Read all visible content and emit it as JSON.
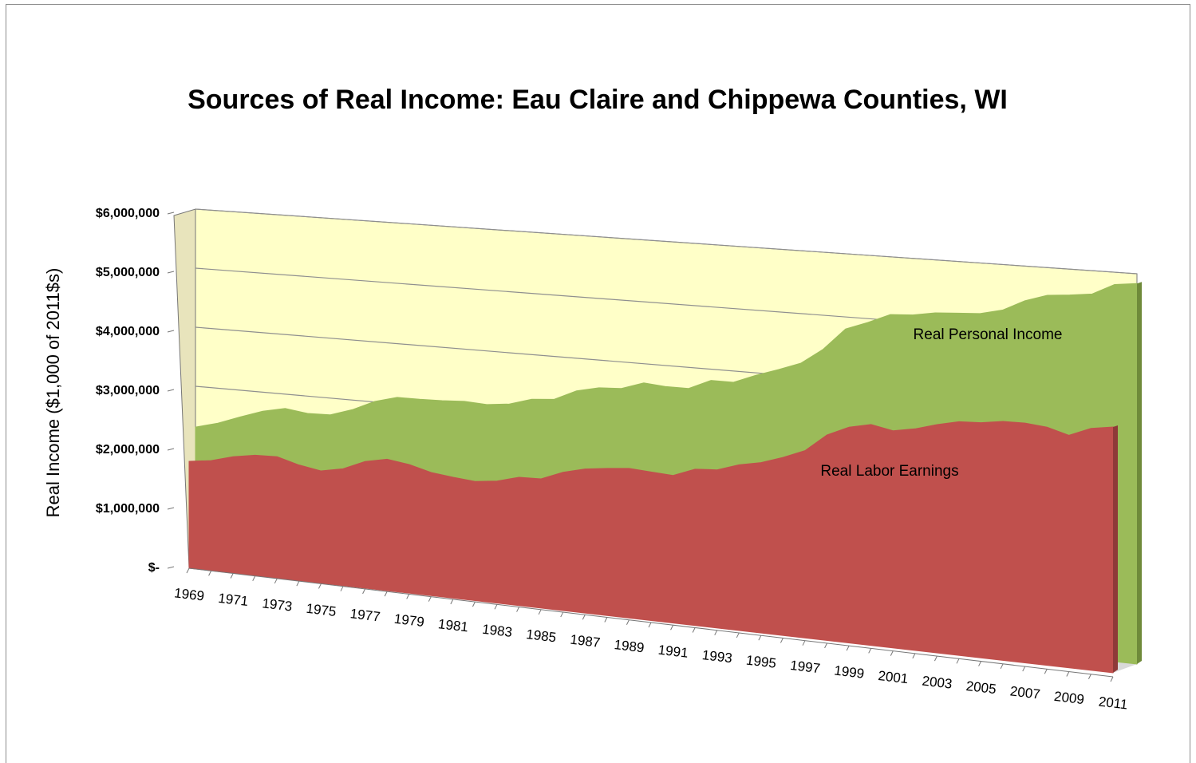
{
  "chart_data": {
    "type": "area3d",
    "title": "Sources of Real Income: Eau Claire and Chippewa Counties, WI",
    "y_label": "Real Income ($1,000 of 2011$s)",
    "categories": [
      "1969",
      null,
      "1971",
      null,
      "1973",
      null,
      "1975",
      null,
      "1977",
      null,
      "1979",
      null,
      "1981",
      null,
      "1983",
      null,
      "1985",
      null,
      "1987",
      null,
      "1989",
      null,
      "1991",
      null,
      "1993",
      null,
      "1995",
      null,
      "1997",
      null,
      "1999",
      null,
      "2001",
      null,
      "2003",
      null,
      "2005",
      null,
      "2007",
      null,
      "2009",
      null,
      "2011"
    ],
    "series": [
      {
        "name": "Real Personal Income",
        "color": "#9bbb59",
        "values": [
          2310000,
          2410000,
          2550000,
          2680000,
          2760000,
          2710000,
          2720000,
          2840000,
          3010000,
          3110000,
          3110000,
          3120000,
          3140000,
          3120000,
          3160000,
          3270000,
          3300000,
          3470000,
          3550000,
          3570000,
          3690000,
          3660000,
          3660000,
          3820000,
          3820000,
          3960000,
          4080000,
          4210000,
          4460000,
          4810000,
          4940000,
          5090000,
          5110000,
          5170000,
          5190000,
          5210000,
          5290000,
          5460000,
          5570000,
          5600000,
          5640000,
          5810000,
          5850000
        ]
      },
      {
        "name": "Real Labor Earnings",
        "color": "#c0504d",
        "values": [
          1810000,
          1850000,
          1940000,
          1990000,
          1990000,
          1880000,
          1810000,
          1870000,
          2010000,
          2070000,
          2010000,
          1910000,
          1860000,
          1820000,
          1850000,
          1930000,
          1930000,
          2050000,
          2120000,
          2150000,
          2170000,
          2140000,
          2110000,
          2220000,
          2230000,
          2320000,
          2370000,
          2460000,
          2570000,
          2800000,
          2920000,
          2970000,
          2900000,
          2940000,
          3010000,
          3060000,
          3060000,
          3090000,
          3080000,
          3040000,
          2950000,
          3050000,
          3080000
        ]
      }
    ],
    "ylim": [
      0,
      6000000
    ],
    "yticks": [
      {
        "value": 0,
        "label": "$-"
      },
      {
        "value": 1000000,
        "label": "$1,000,000"
      },
      {
        "value": 2000000,
        "label": "$2,000,000"
      },
      {
        "value": 3000000,
        "label": "$3,000,000"
      },
      {
        "value": 4000000,
        "label": "$4,000,000"
      },
      {
        "value": 5000000,
        "label": "$5,000,000"
      },
      {
        "value": 6000000,
        "label": "$6,000,000"
      }
    ],
    "grid": true
  }
}
